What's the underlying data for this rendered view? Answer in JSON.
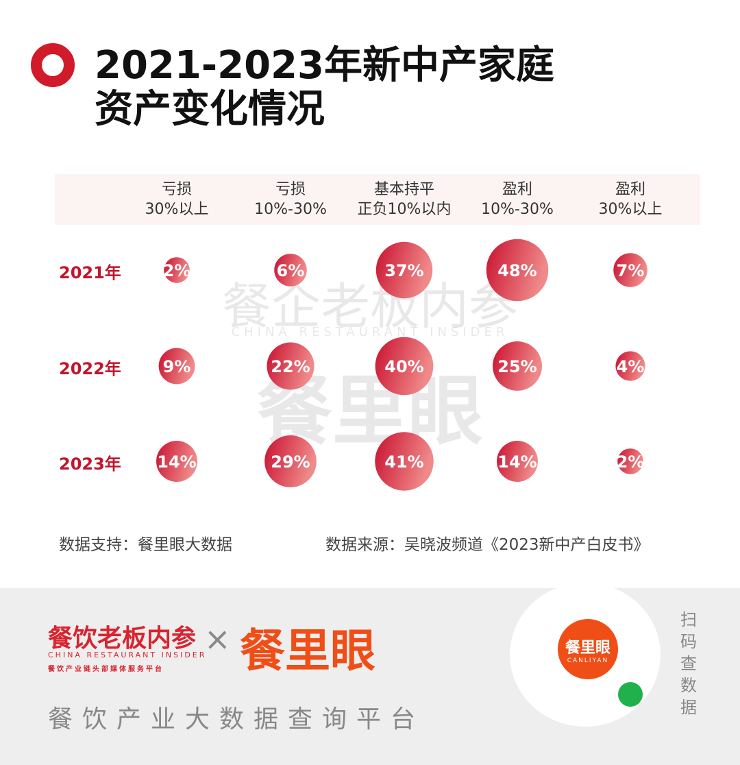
{
  "title": {
    "line1": "2021-2023年新中产家庭",
    "line2": "资产变化情况"
  },
  "chart_data": {
    "type": "bubble-table",
    "categories": [
      {
        "line1": "亏损",
        "line2": "30%以上"
      },
      {
        "line1": "亏损",
        "line2": "10%-30%"
      },
      {
        "line1": "基本持平",
        "line2": "正负10%以内"
      },
      {
        "line1": "盈利",
        "line2": "10%-30%"
      },
      {
        "line1": "盈利",
        "line2": "30%以上"
      }
    ],
    "series": [
      {
        "name": "2021年",
        "values": [
          2,
          6,
          37,
          48,
          7
        ]
      },
      {
        "name": "2022年",
        "values": [
          9,
          22,
          40,
          25,
          4
        ]
      },
      {
        "name": "2023年",
        "values": [
          14,
          29,
          41,
          14,
          2
        ]
      }
    ],
    "unit": "%",
    "colors": {
      "bubble_dark": "#c8102e",
      "bubble_light": "#f08080",
      "row_label": "#c3162b"
    }
  },
  "watermark": {
    "cn": "餐企老板内参",
    "en": "CHINA RESTAURANT INSIDER",
    "brand": "餐里眼"
  },
  "sources": {
    "support": "数据支持：餐里眼大数据",
    "origin": "数据来源：吴晓波频道《2023新中产白皮书》"
  },
  "footer": {
    "logo1": "餐饮老板内参",
    "logo1_en": "CHINA RESTAURANT INSIDER",
    "logo1_sub": "餐饮产业链头部媒体服务平台",
    "cross": "×",
    "logo2": "餐里眼",
    "slogan": "餐饮产业大数据查询平台",
    "qr_center": "餐里眼",
    "qr_center_en": "CANLIYAN",
    "scan": "扫码查数据"
  }
}
